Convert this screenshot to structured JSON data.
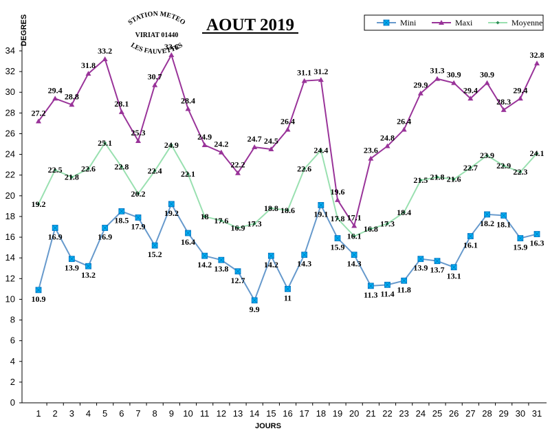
{
  "chart_data": {
    "type": "line",
    "title": "AOUT 2019",
    "xlabel": "JOURS",
    "ylabel": "DEGRES",
    "categories": [
      "1",
      "2",
      "3",
      "4",
      "5",
      "6",
      "7",
      "8",
      "9",
      "10",
      "11",
      "12",
      "13",
      "14",
      "15",
      "16",
      "17",
      "18",
      "19",
      "20",
      "21",
      "22",
      "23",
      "24",
      "25",
      "26",
      "27",
      "28",
      "29",
      "30",
      "31"
    ],
    "ylim": [
      0,
      34
    ],
    "yticks": [
      0,
      2,
      4,
      6,
      8,
      10,
      12,
      14,
      16,
      18,
      20,
      22,
      24,
      26,
      28,
      30,
      32,
      34
    ],
    "grid": false,
    "legend_position": "top-right",
    "series": [
      {
        "name": "Mini",
        "color": "#6699cc",
        "marker": "square",
        "marker_color": "#00b0f0",
        "values": [
          10.9,
          16.9,
          13.9,
          13.2,
          16.9,
          18.5,
          17.9,
          15.2,
          19.2,
          16.4,
          14.2,
          13.8,
          12.7,
          9.9,
          14.2,
          11,
          14.3,
          19.1,
          15.9,
          14.3,
          11.3,
          11.4,
          11.8,
          13.9,
          13.7,
          13.1,
          16.1,
          18.2,
          18.1,
          15.9,
          16.3
        ],
        "labels": [
          "10.9",
          "16.9",
          "13.9",
          "13.2",
          "16.9",
          "18.5",
          "17.9",
          "15.2",
          "19.2",
          "16.4",
          "14.2",
          "13.8",
          "12.7",
          "9.9",
          "14.2",
          "11",
          "14.3",
          "19.1",
          "15.9",
          "14.3",
          "11.3",
          "11.4",
          "11.8",
          "13.9",
          "13.7",
          "13.1",
          "16.1",
          "18.2",
          "18.1",
          "15.9",
          "16.3"
        ]
      },
      {
        "name": "Maxi",
        "color": "#993399",
        "marker": "triangle",
        "marker_color": "#993399",
        "values": [
          27.2,
          29.4,
          28.8,
          31.8,
          33.2,
          28.1,
          25.3,
          30.7,
          33.6,
          28.4,
          24.9,
          24.2,
          22.2,
          24.7,
          24.5,
          26.4,
          31.1,
          31.2,
          19.6,
          17.1,
          23.6,
          24.8,
          26.4,
          29.9,
          31.3,
          30.9,
          29.4,
          30.9,
          28.3,
          29.4,
          32.8
        ],
        "labels": [
          "27.2",
          "29.4",
          "28.8",
          "31.8",
          "33.2",
          "28.1",
          "25.3",
          "30.7",
          "33.6",
          "28.4",
          "24.9",
          "24.2",
          "22.2",
          "24.7",
          "24.5",
          "26.4",
          "31.1",
          "31.2",
          "19.6",
          "17.1",
          "23.6",
          "24.8",
          "26.4",
          "29.9",
          "31.3",
          "30.9",
          "29.4",
          "30.9",
          "28.3",
          "29.4",
          "32.8"
        ]
      },
      {
        "name": "Moyenne",
        "color": "#99e0b0",
        "marker": "diamond",
        "marker_color": "#2e8b57",
        "values": [
          19.2,
          22.5,
          21.8,
          22.6,
          25.1,
          22.8,
          20.2,
          22.4,
          24.9,
          22.1,
          18,
          17.6,
          16.9,
          17.3,
          18.8,
          18.6,
          22.6,
          24.4,
          17.8,
          16.1,
          16.8,
          17.3,
          18.4,
          21.5,
          21.8,
          21.6,
          22.7,
          23.9,
          22.9,
          22.3,
          24.1
        ],
        "labels": [
          "19.2",
          "22.5",
          "21.8",
          "22.6",
          "25.1",
          "22.8",
          "20.2",
          "22.4",
          "24.9",
          "22.1",
          "18",
          "17.6",
          "16.9",
          "17.3",
          "18.8",
          "18.6",
          "22.6",
          "24.4",
          "17.8",
          "16.1",
          "16.8",
          "17.3",
          "18.4",
          "21.5",
          "21.8",
          "21.6",
          "22.7",
          "23.9",
          "22.9",
          "22.3",
          "24.1"
        ]
      }
    ]
  },
  "stamp": {
    "line1": "STATION METEO",
    "line2": "VIRIAT 01440",
    "line3": "LES FAUVETTES"
  }
}
